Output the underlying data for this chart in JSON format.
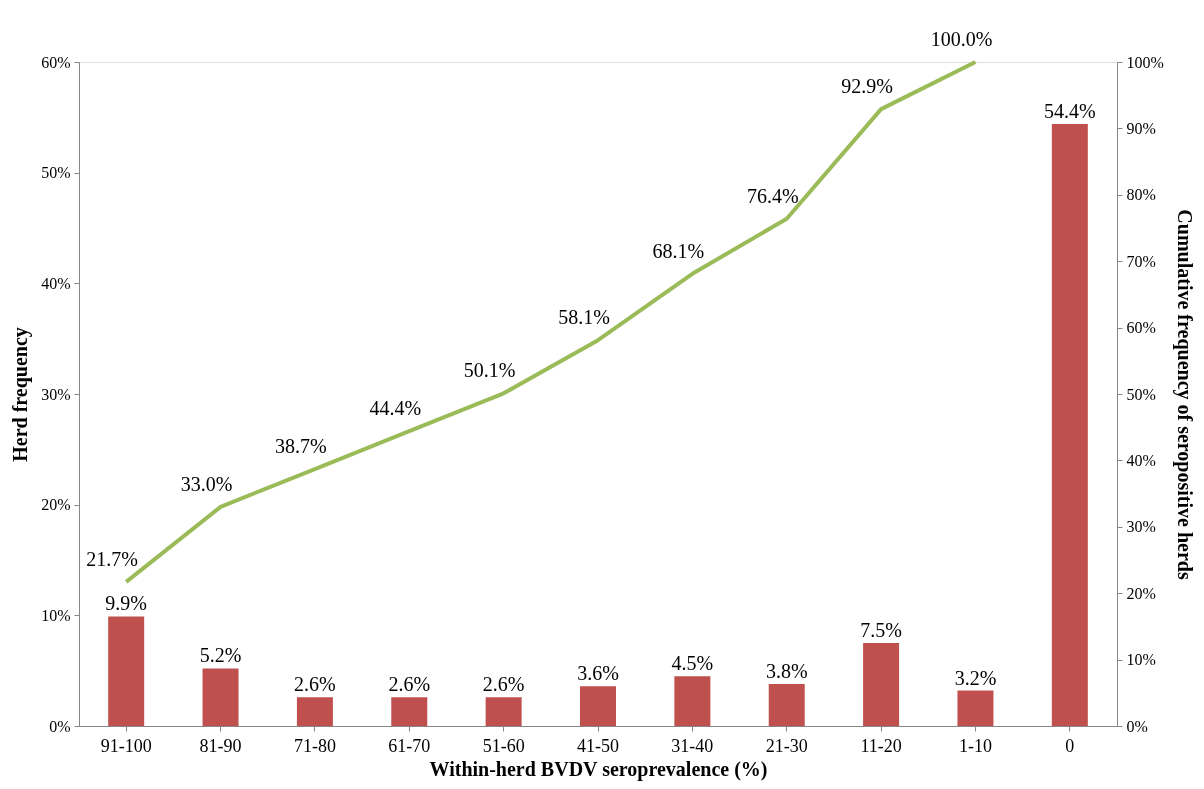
{
  "chart_data": {
    "type": "bar",
    "xlabel": "Within-herd BVDV seroprevalence (%)",
    "ylabel": "Herd frequency",
    "y2label": "Cumulative frequency of seropositive herds",
    "categories": [
      "91-100",
      "81-90",
      "71-80",
      "61-70",
      "51-60",
      "41-50",
      "31-40",
      "21-30",
      "11-20",
      "1-10",
      "0"
    ],
    "series": [
      {
        "color": "#c0504d",
        "values": [
          9.9,
          5.2,
          2.6,
          2.6,
          2.6,
          3.6,
          4.5,
          3.8,
          7.5,
          3.2,
          54.4
        ],
        "value_labels": [
          "9.9%",
          "5.2%",
          "2.6%",
          "2.6%",
          "2.6%",
          "3.6%",
          "4.5%",
          "3.8%",
          "7.5%",
          "3.2%",
          "54.4%"
        ]
      },
      {
        "type": "line",
        "axis": "y2",
        "color": "#9bbb59",
        "values": [
          21.7,
          33.0,
          38.7,
          44.4,
          50.1,
          58.1,
          68.1,
          76.4,
          92.9,
          100.0,
          null
        ],
        "value_labels": [
          "21.7%",
          "33.0%",
          "38.7%",
          "44.4%",
          "50.1%",
          "58.1%",
          "68.1%",
          "76.4%",
          "92.9%",
          "100.0%",
          null
        ]
      }
    ],
    "ylim": [
      0,
      60
    ],
    "yticks": [
      {
        "value": 0,
        "label": "0%"
      },
      {
        "value": 10,
        "label": "10%"
      },
      {
        "value": 20,
        "label": "20%"
      },
      {
        "value": 30,
        "label": "30%"
      },
      {
        "value": 40,
        "label": "40%"
      },
      {
        "value": 50,
        "label": "50%"
      },
      {
        "value": 60,
        "label": "60%"
      }
    ],
    "y2lim": [
      0,
      100
    ],
    "y2ticks": [
      {
        "value": 0,
        "label": "0%"
      },
      {
        "value": 10,
        "label": "10%"
      },
      {
        "value": 20,
        "label": "20%"
      },
      {
        "value": 30,
        "label": "30%"
      },
      {
        "value": 40,
        "label": "40%"
      },
      {
        "value": 50,
        "label": "50%"
      },
      {
        "value": 60,
        "label": "60%"
      },
      {
        "value": 70,
        "label": "70%"
      },
      {
        "value": 80,
        "label": "80%"
      },
      {
        "value": 90,
        "label": "90%"
      },
      {
        "value": 100,
        "label": "100%"
      }
    ],
    "grid": false,
    "marker": "none",
    "line_style": "solid"
  }
}
